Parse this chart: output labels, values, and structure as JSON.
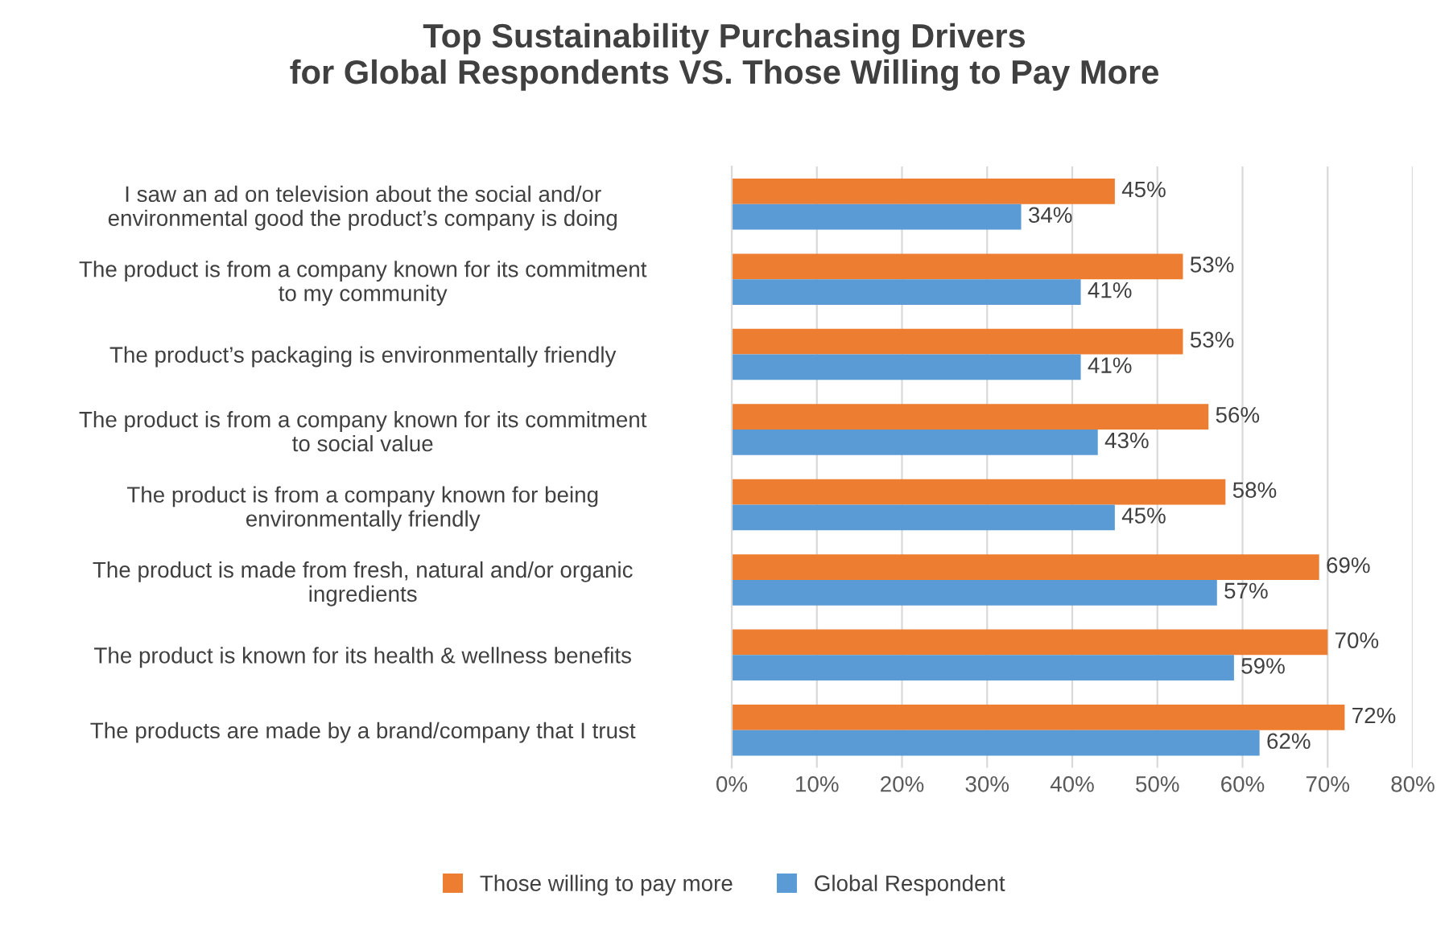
{
  "chart_data": {
    "type": "bar",
    "orientation": "horizontal",
    "title": "Top Sustainability Purchasing Drivers\nfor Global Respondents VS. Those Willing to Pay More",
    "categories": [
      "I saw an ad on television about the social and/or\nenvironmental good the product’s company is doing",
      "The product is from a company known for its commitment\nto my community",
      "The product’s packaging is environmentally friendly",
      "The product is from a company known for its commitment\nto social value",
      "The product is from a company known for being\nenvironmentally friendly",
      "The product is made from fresh, natural and/or organic\ningredients",
      "The product is known for its health & wellness benefits",
      "The products are made by a brand/company that I trust"
    ],
    "series": [
      {
        "name": "Those willing to pay more",
        "color": "#ed7d31",
        "values": [
          45,
          53,
          53,
          56,
          58,
          69,
          70,
          72
        ],
        "value_labels": [
          "45%",
          "53%",
          "53%",
          "56%",
          "58%",
          "69%",
          "70%",
          "72%"
        ]
      },
      {
        "name": "Global Respondent",
        "color": "#5b9bd5",
        "values": [
          34,
          41,
          41,
          43,
          45,
          57,
          59,
          62
        ],
        "value_labels": [
          "34%",
          "41%",
          "41%",
          "43%",
          "45%",
          "57%",
          "59%",
          "62%"
        ]
      }
    ],
    "xlim": [
      0,
      80
    ],
    "xticks": [
      {
        "value": 0,
        "label": "0%"
      },
      {
        "value": 10,
        "label": "10%"
      },
      {
        "value": 20,
        "label": "20%"
      },
      {
        "value": 30,
        "label": "30%"
      },
      {
        "value": 40,
        "label": "40%"
      },
      {
        "value": 50,
        "label": "50%"
      },
      {
        "value": 60,
        "label": "60%"
      },
      {
        "value": 70,
        "label": "70%"
      },
      {
        "value": 80,
        "label": "80%"
      }
    ],
    "grid": "x",
    "legend": "bottom"
  }
}
